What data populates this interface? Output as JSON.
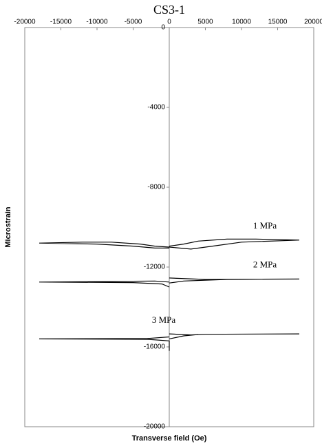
{
  "chart_data": {
    "type": "line",
    "title": "CS3-1",
    "x_label": "Transverse field (Oe)",
    "y_label": "Microstrain",
    "xlim": [
      -20000,
      20000
    ],
    "xticks": [
      -20000,
      -15000,
      -10000,
      -5000,
      0,
      5000,
      10000,
      15000,
      20000
    ],
    "ylim": [
      -20000,
      0
    ],
    "yticks": [
      0,
      -4000,
      -8000,
      -12000,
      -16000,
      -20000
    ],
    "series": [
      {
        "name": "1 MPa",
        "color": "#000000",
        "x": [
          -18000,
          -12000,
          -8000,
          -4000,
          -2000,
          0,
          null,
          -18000,
          -10000,
          -5000,
          -2000,
          0,
          null,
          0,
          2000,
          4000,
          8000,
          12000,
          18000,
          null,
          0,
          3000,
          6000,
          10000,
          18000
        ],
        "values": [
          -10800,
          -10750,
          -10750,
          -10850,
          -10950,
          -11000,
          null,
          -10800,
          -10850,
          -10950,
          -11050,
          -11050,
          null,
          -10950,
          -10850,
          -10700,
          -10600,
          -10600,
          -10650,
          null,
          -11000,
          -11100,
          -10950,
          -10750,
          -10650
        ]
      },
      {
        "name": "2 MPa",
        "color": "#000000",
        "x": [
          -18000,
          -5000,
          -1000,
          0,
          null,
          -18000,
          -8000,
          -2000,
          0,
          null,
          0,
          5000,
          18000,
          null,
          0,
          2000,
          8000,
          18000
        ],
        "values": [
          -12750,
          -12780,
          -12850,
          -13000,
          null,
          -12750,
          -12720,
          -12700,
          -12750,
          null,
          -12550,
          -12620,
          -12600,
          null,
          -12800,
          -12700,
          -12620,
          -12600
        ]
      },
      {
        "name": "3 MPa",
        "color": "#000000",
        "x": [
          -18000,
          -3000,
          0,
          null,
          -18000,
          -3000,
          0,
          0,
          null,
          0,
          3000,
          5000,
          18000,
          null,
          0,
          2000,
          4000
        ],
        "values": [
          -15600,
          -15580,
          -15500,
          null,
          -15600,
          -15620,
          -15700,
          -16200,
          null,
          -15350,
          -15400,
          -15370,
          -15350,
          null,
          -15600,
          -15450,
          -15380
        ]
      }
    ]
  }
}
